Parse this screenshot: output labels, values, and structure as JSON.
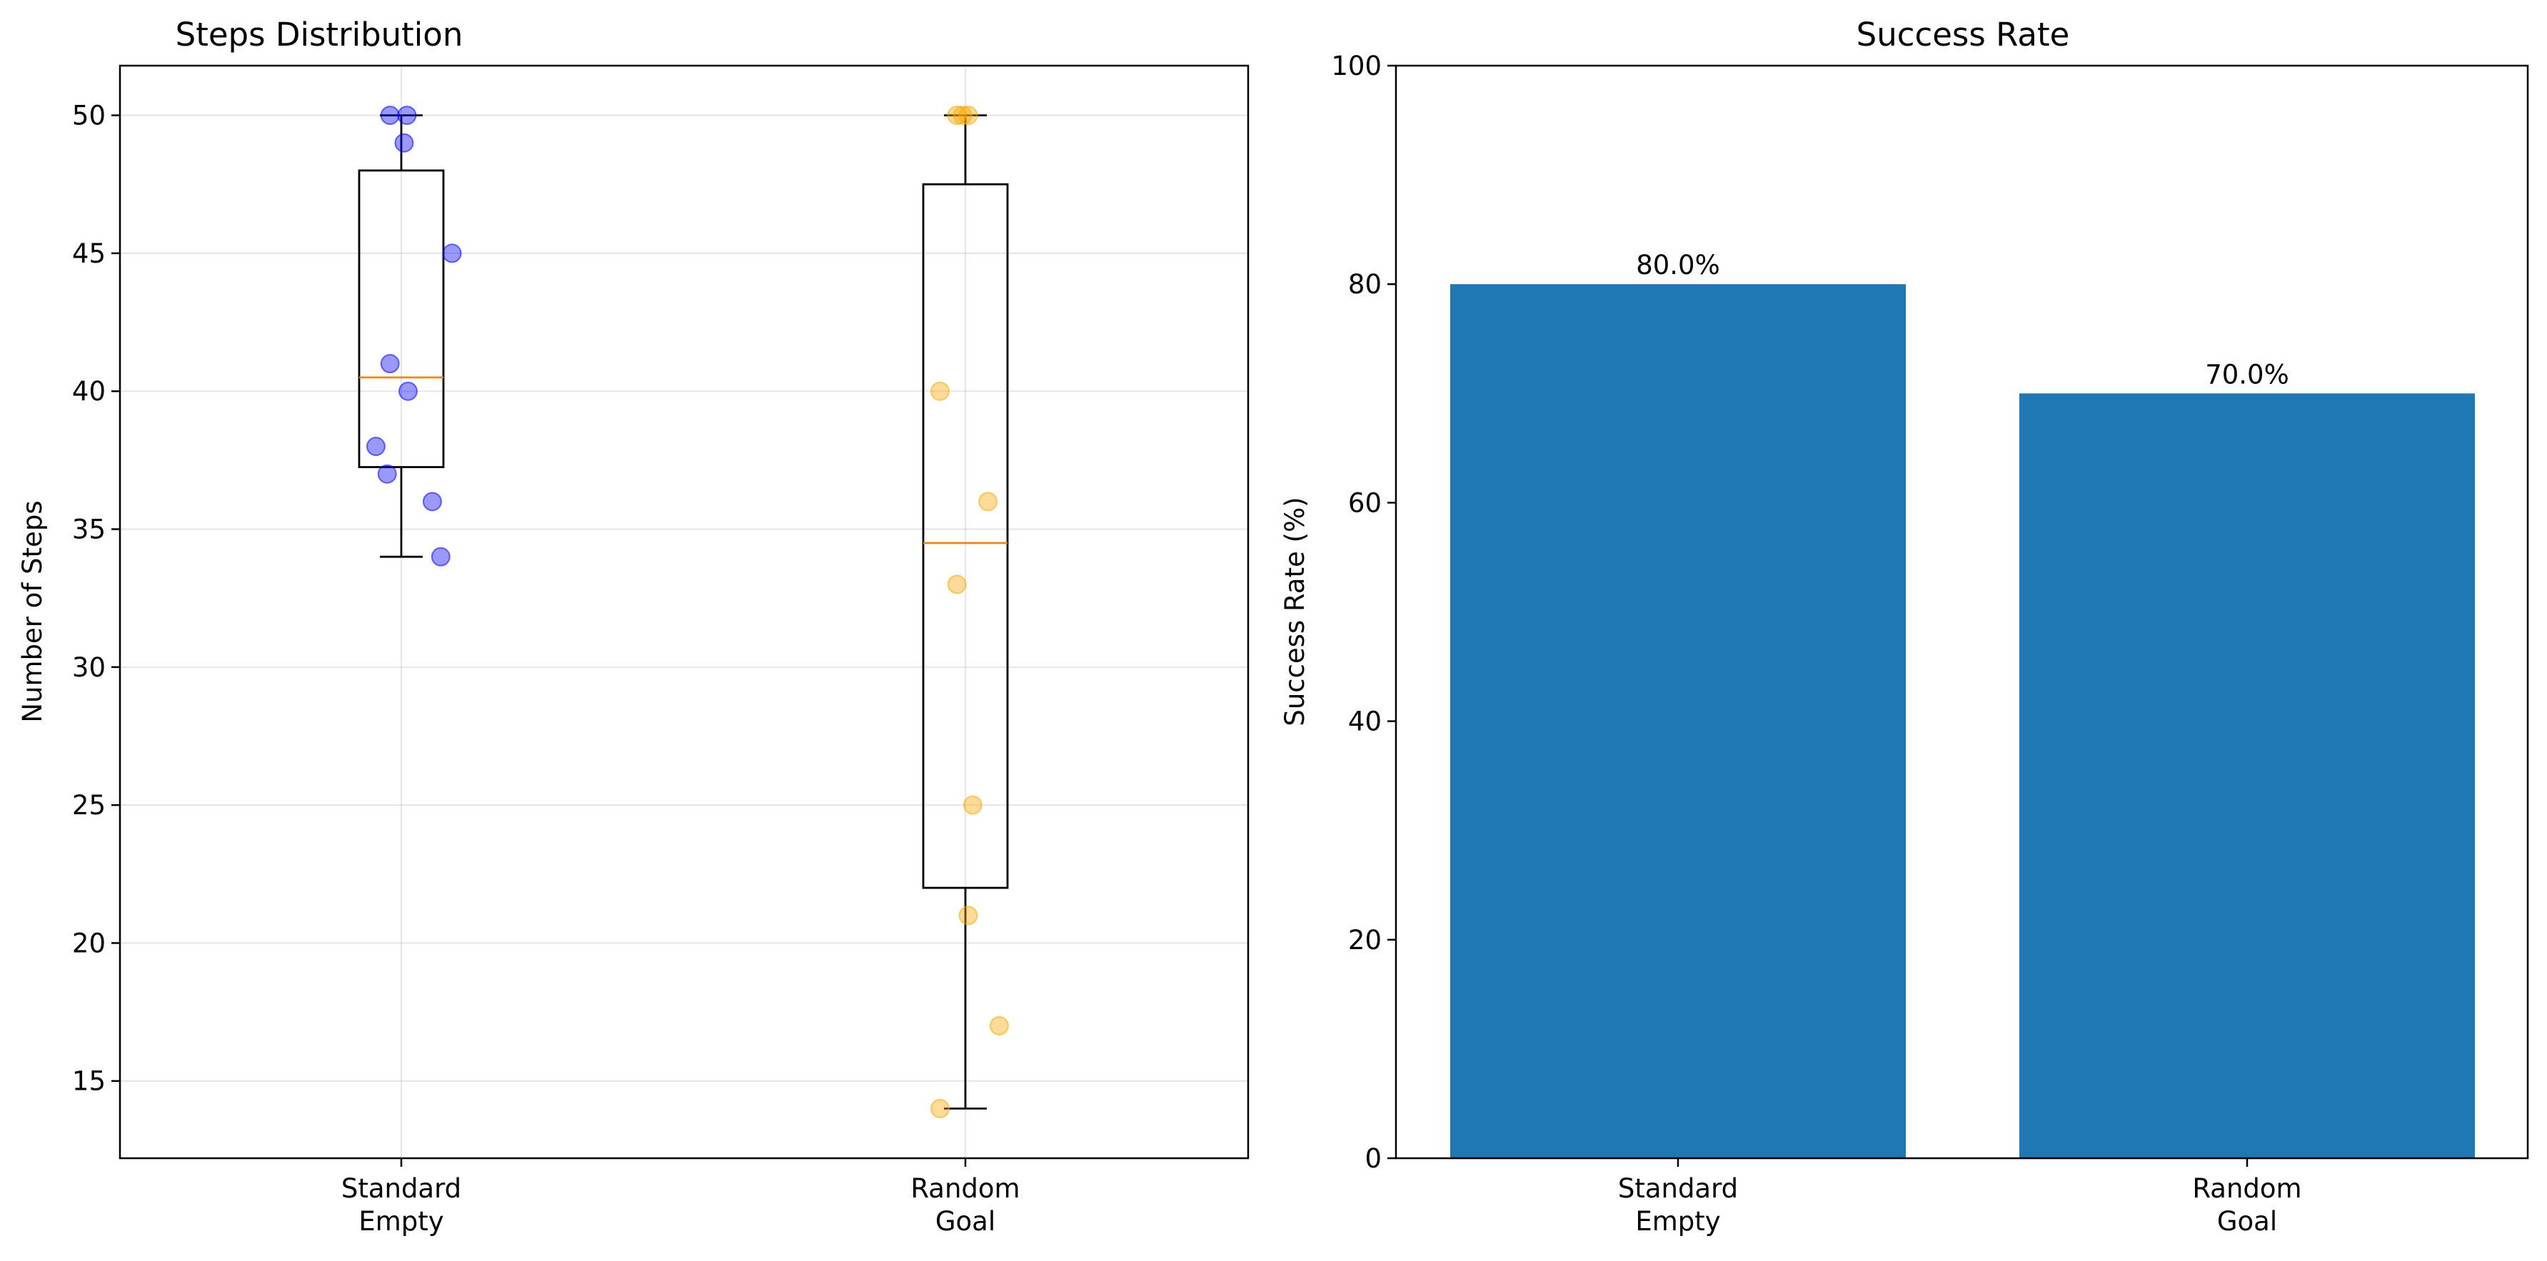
{
  "chart_data": [
    {
      "type": "box",
      "title": "Steps Distribution",
      "xlabel": "",
      "ylabel": "Number of Steps",
      "categories": [
        [
          "Standard",
          "Empty"
        ],
        [
          "Random",
          "Goal"
        ]
      ],
      "yticks": [
        15,
        20,
        25,
        30,
        35,
        40,
        45,
        50
      ],
      "ylim": [
        12.2,
        51.8
      ],
      "grid": true,
      "boxes": [
        {
          "q1": 37.25,
          "median": 40.5,
          "q3": 48,
          "whisker_low": 34,
          "whisker_high": 50,
          "color": "#0000ff"
        },
        {
          "q1": 22,
          "median": 34.5,
          "q3": 47.5,
          "whisker_low": 14,
          "whisker_high": 50,
          "color": "#ffa500"
        }
      ],
      "points": [
        [
          {
            "x": 0.98,
            "y": 50
          },
          {
            "x": 1.01,
            "y": 50
          },
          {
            "x": 1.005,
            "y": 49
          },
          {
            "x": 1.09,
            "y": 45
          },
          {
            "x": 0.98,
            "y": 41
          },
          {
            "x": 1.012,
            "y": 40
          },
          {
            "x": 0.955,
            "y": 38
          },
          {
            "x": 0.975,
            "y": 37
          },
          {
            "x": 1.055,
            "y": 36
          },
          {
            "x": 1.07,
            "y": 34
          }
        ],
        [
          {
            "x": 1.985,
            "y": 50
          },
          {
            "x": 1.995,
            "y": 50
          },
          {
            "x": 2.005,
            "y": 50
          },
          {
            "x": 1.955,
            "y": 40
          },
          {
            "x": 2.04,
            "y": 36
          },
          {
            "x": 1.985,
            "y": 33
          },
          {
            "x": 2.013,
            "y": 25
          },
          {
            "x": 2.005,
            "y": 21
          },
          {
            "x": 2.06,
            "y": 17
          },
          {
            "x": 1.955,
            "y": 14
          }
        ]
      ]
    },
    {
      "type": "bar",
      "title": "Success Rate",
      "xlabel": "",
      "ylabel": "Success Rate (%)",
      "categories": [
        [
          "Standard",
          "Empty"
        ],
        [
          "Random",
          "Goal"
        ]
      ],
      "values": [
        80,
        70
      ],
      "value_labels": [
        "80.0%",
        "70.0%"
      ],
      "color": "#1f77b4",
      "yticks": [
        0,
        20,
        40,
        60,
        80,
        100
      ],
      "ylim": [
        0,
        100
      ],
      "grid": false
    }
  ]
}
